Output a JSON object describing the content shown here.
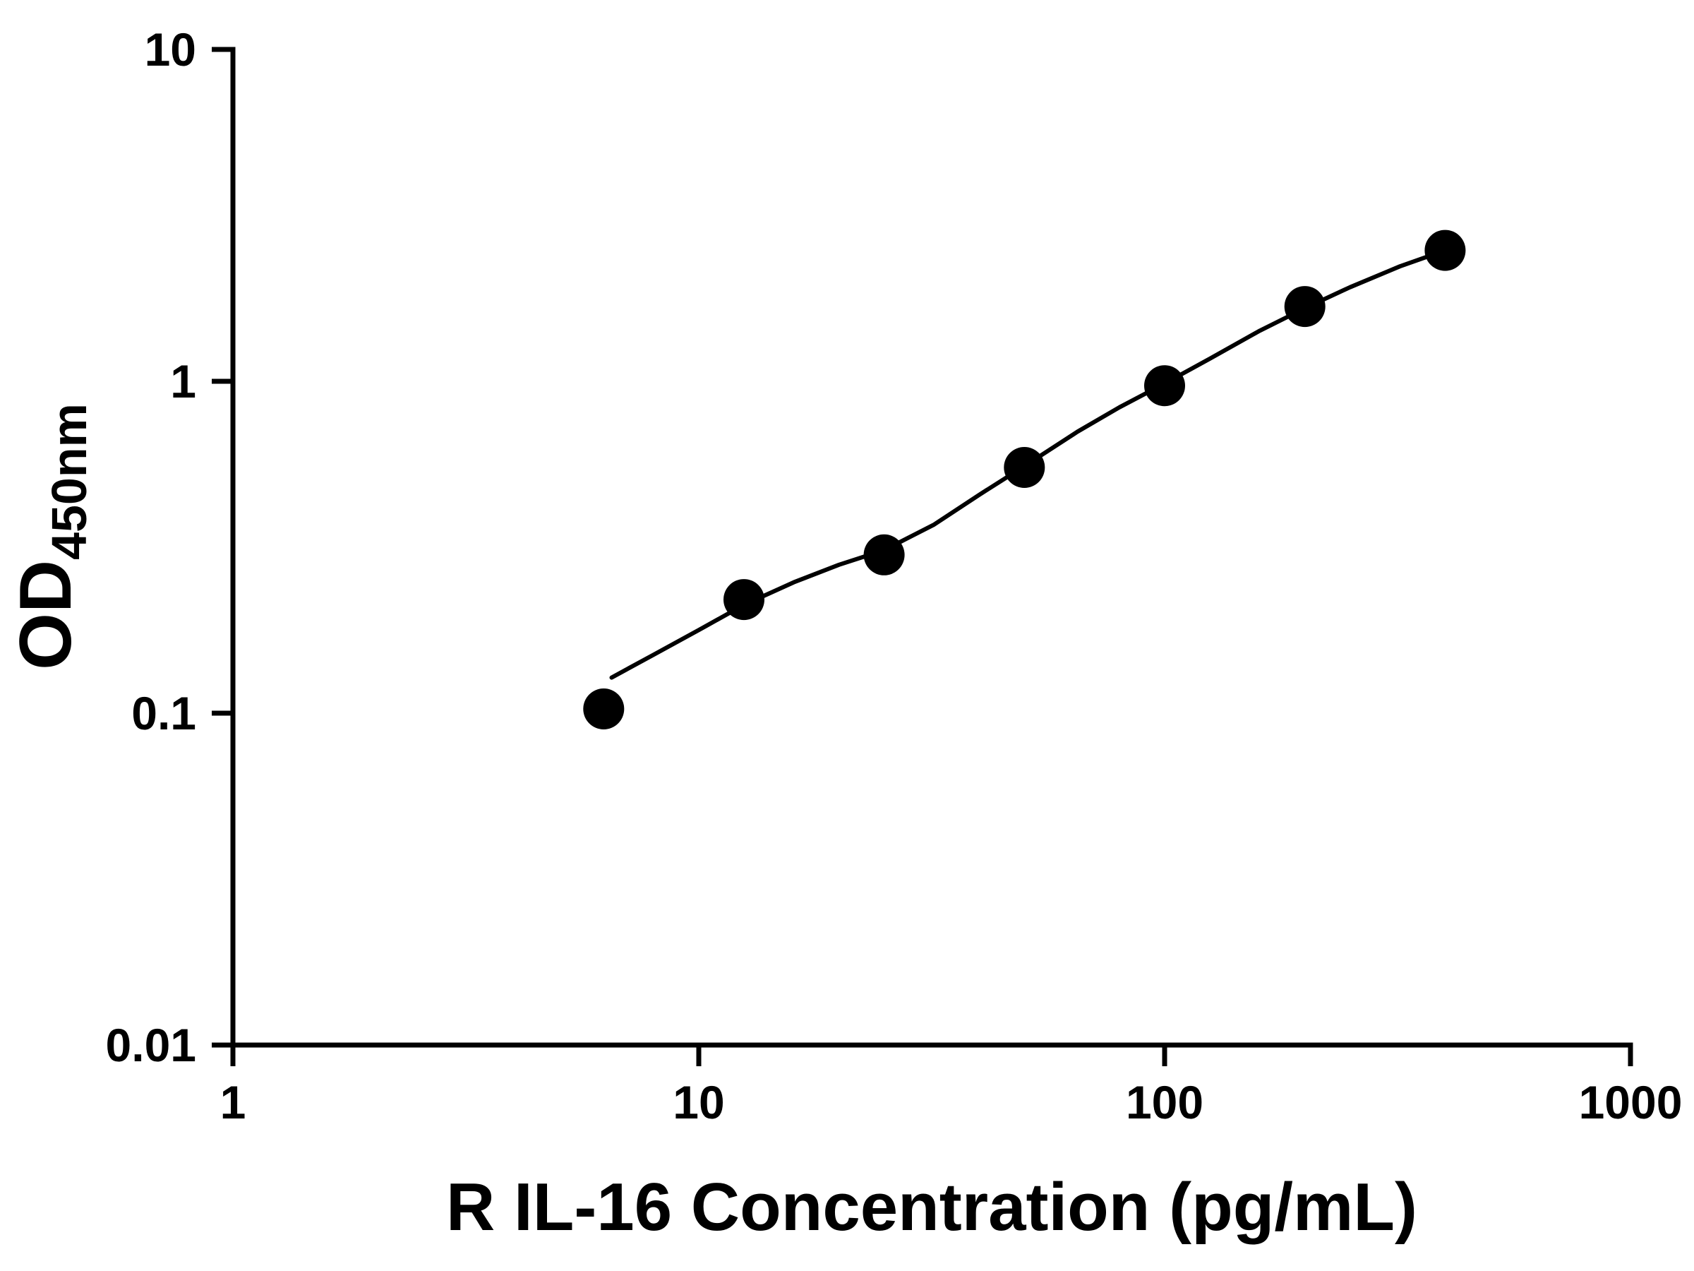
{
  "chart_data": {
    "type": "scatter",
    "title": "",
    "xlabel": "R IL-16 Concentration (pg/mL)",
    "ylabel_main": "OD",
    "ylabel_sub": "450nm",
    "x_scale": "log",
    "y_scale": "log",
    "xlim": [
      1,
      1000
    ],
    "ylim": [
      0.01,
      10
    ],
    "grid": false,
    "legend": null,
    "x_ticks": [
      {
        "v": 1,
        "label": "1"
      },
      {
        "v": 10,
        "label": "10"
      },
      {
        "v": 100,
        "label": "100"
      },
      {
        "v": 1000,
        "label": "1000"
      }
    ],
    "y_ticks": [
      {
        "v": 0.01,
        "label": "0.01"
      },
      {
        "v": 0.1,
        "label": "0.1"
      },
      {
        "v": 1,
        "label": "1"
      },
      {
        "v": 10,
        "label": "10"
      }
    ],
    "points": [
      {
        "x": 6.25,
        "y": 0.103
      },
      {
        "x": 12.5,
        "y": 0.22
      },
      {
        "x": 25,
        "y": 0.3
      },
      {
        "x": 50,
        "y": 0.55
      },
      {
        "x": 100,
        "y": 0.97
      },
      {
        "x": 200,
        "y": 1.68
      },
      {
        "x": 400,
        "y": 2.48
      }
    ],
    "fit_curve": [
      [
        6.5,
        0.128
      ],
      [
        8,
        0.15
      ],
      [
        10,
        0.178
      ],
      [
        12.5,
        0.212
      ],
      [
        16,
        0.248
      ],
      [
        20,
        0.28
      ],
      [
        25,
        0.31
      ],
      [
        32,
        0.37
      ],
      [
        40,
        0.455
      ],
      [
        50,
        0.555
      ],
      [
        65,
        0.705
      ],
      [
        80,
        0.835
      ],
      [
        100,
        0.985
      ],
      [
        125,
        1.17
      ],
      [
        160,
        1.42
      ],
      [
        200,
        1.66
      ],
      [
        250,
        1.92
      ],
      [
        320,
        2.22
      ],
      [
        400,
        2.48
      ]
    ],
    "colors": {
      "axis": "#000000",
      "point": "#000000",
      "curve": "#000000",
      "background": "#ffffff"
    }
  }
}
